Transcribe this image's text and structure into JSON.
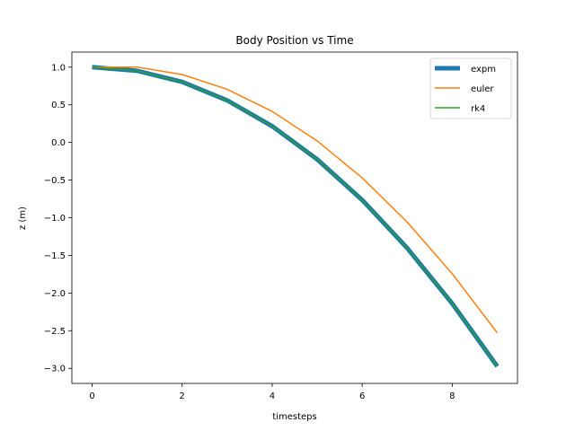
{
  "chart_data": {
    "type": "line",
    "title": "Body Position vs Time",
    "xlabel": "timesteps",
    "ylabel": "z (m)",
    "xlim": [
      -0.45,
      9.45
    ],
    "ylim": [
      -3.2,
      1.2
    ],
    "xticks": [
      0,
      2,
      4,
      6,
      8
    ],
    "xtick_labels": [
      "0",
      "2",
      "4",
      "6",
      "8"
    ],
    "yticks": [
      1.0,
      0.5,
      0.0,
      -0.5,
      -1.0,
      -1.5,
      -2.0,
      -2.5,
      -3.0
    ],
    "ytick_labels": [
      "1.0",
      "0.5",
      "0.0",
      "−0.5",
      "−1.0",
      "−1.5",
      "−2.0",
      "−2.5",
      "−3.0"
    ],
    "grid": false,
    "legend_position": "top-right",
    "x": [
      0,
      1,
      2,
      3,
      4,
      5,
      6,
      7,
      8,
      9
    ],
    "series": [
      {
        "name": "expm",
        "color": "#1f77b4",
        "linewidth": "thick",
        "values": [
          1.0,
          0.951,
          0.804,
          0.559,
          0.216,
          -0.225,
          -0.764,
          -1.403,
          -2.139,
          -2.973
        ]
      },
      {
        "name": "euler",
        "color": "#ff7f0e",
        "linewidth": "normal",
        "values": [
          1.0,
          1.0,
          0.902,
          0.706,
          0.412,
          0.02,
          -0.47,
          -1.058,
          -1.744,
          -2.528
        ]
      },
      {
        "name": "rk4",
        "color": "#2ca02c",
        "linewidth": "normal",
        "values": [
          1.0,
          0.951,
          0.804,
          0.559,
          0.216,
          -0.225,
          -0.764,
          -1.403,
          -2.139,
          -2.973
        ]
      }
    ]
  }
}
